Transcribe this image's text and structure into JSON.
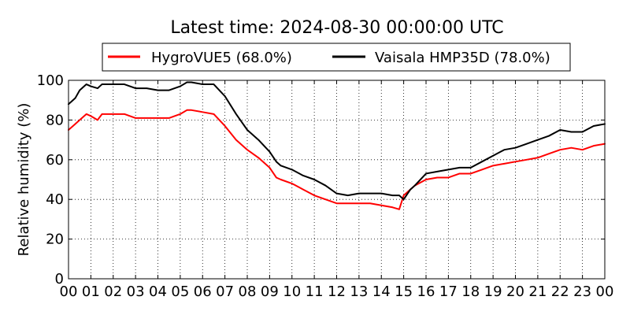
{
  "chart_data": {
    "type": "line",
    "title": "Latest time: 2024-08-30 00:00:00 UTC",
    "xlabel": "",
    "ylabel": "Relative humidity (%)",
    "xlim": [
      0,
      24
    ],
    "ylim": [
      0,
      100
    ],
    "x_ticks": [
      0,
      1,
      2,
      3,
      4,
      5,
      6,
      7,
      8,
      9,
      10,
      11,
      12,
      13,
      14,
      15,
      16,
      17,
      18,
      19,
      20,
      21,
      22,
      23,
      24
    ],
    "x_tick_labels": [
      "00",
      "01",
      "02",
      "03",
      "04",
      "05",
      "06",
      "07",
      "08",
      "09",
      "10",
      "11",
      "12",
      "13",
      "14",
      "15",
      "16",
      "17",
      "18",
      "19",
      "20",
      "21",
      "22",
      "23",
      "00"
    ],
    "y_ticks": [
      0,
      20,
      40,
      60,
      80,
      100
    ],
    "y_tick_labels": [
      "0",
      "20",
      "40",
      "60",
      "80",
      "100"
    ],
    "grid": true,
    "legend_position": "top",
    "series": [
      {
        "name": "HygroVUE5 (68.0%)",
        "color": "#ff0000",
        "x": [
          0,
          0.3,
          0.5,
          0.8,
          1,
          1.3,
          1.5,
          2,
          2.5,
          3,
          3.5,
          4,
          4.5,
          5,
          5.3,
          5.5,
          6,
          6.5,
          7,
          7.5,
          8,
          8.5,
          9,
          9.3,
          9.5,
          10,
          10.5,
          11,
          11.5,
          12,
          12.5,
          13,
          13.5,
          14,
          14.5,
          14.8,
          15,
          15.3,
          15.5,
          16,
          16.5,
          17,
          17.5,
          18,
          18.5,
          19,
          19.5,
          20,
          20.5,
          21,
          21.5,
          22,
          22.5,
          23,
          23.5,
          24
        ],
        "values": [
          75,
          78,
          80,
          83,
          82,
          80,
          83,
          83,
          83,
          81,
          81,
          81,
          81,
          83,
          85,
          85,
          84,
          83,
          77,
          70,
          65,
          61,
          56,
          51,
          50,
          48,
          45,
          42,
          40,
          38,
          38,
          38,
          38,
          37,
          36,
          35,
          42,
          45,
          47,
          50,
          51,
          51,
          53,
          53,
          55,
          57,
          58,
          59,
          60,
          61,
          63,
          65,
          66,
          65,
          67,
          68
        ]
      },
      {
        "name": "Vaisala HMP35D (78.0%)",
        "color": "#000000",
        "x": [
          0,
          0.3,
          0.5,
          0.8,
          1,
          1.3,
          1.5,
          2,
          2.5,
          3,
          3.5,
          4,
          4.5,
          5,
          5.3,
          5.5,
          6,
          6.5,
          7,
          7.5,
          8,
          8.5,
          9,
          9.3,
          9.5,
          10,
          10.5,
          11,
          11.5,
          12,
          12.5,
          13,
          13.5,
          14,
          14.5,
          14.8,
          15,
          15.3,
          15.5,
          16,
          16.5,
          17,
          17.5,
          18,
          18.5,
          19,
          19.5,
          20,
          20.5,
          21,
          21.5,
          22,
          22.5,
          23,
          23.5,
          24
        ],
        "values": [
          88,
          91,
          95,
          98,
          97,
          96,
          98,
          98,
          98,
          96,
          96,
          95,
          95,
          97,
          99,
          99,
          98,
          98,
          92,
          83,
          75,
          70,
          64,
          59,
          57,
          55,
          52,
          50,
          47,
          43,
          42,
          43,
          43,
          43,
          42,
          42,
          40,
          45,
          47,
          53,
          54,
          55,
          56,
          56,
          59,
          62,
          65,
          66,
          68,
          70,
          72,
          75,
          74,
          74,
          77,
          78
        ]
      }
    ]
  }
}
